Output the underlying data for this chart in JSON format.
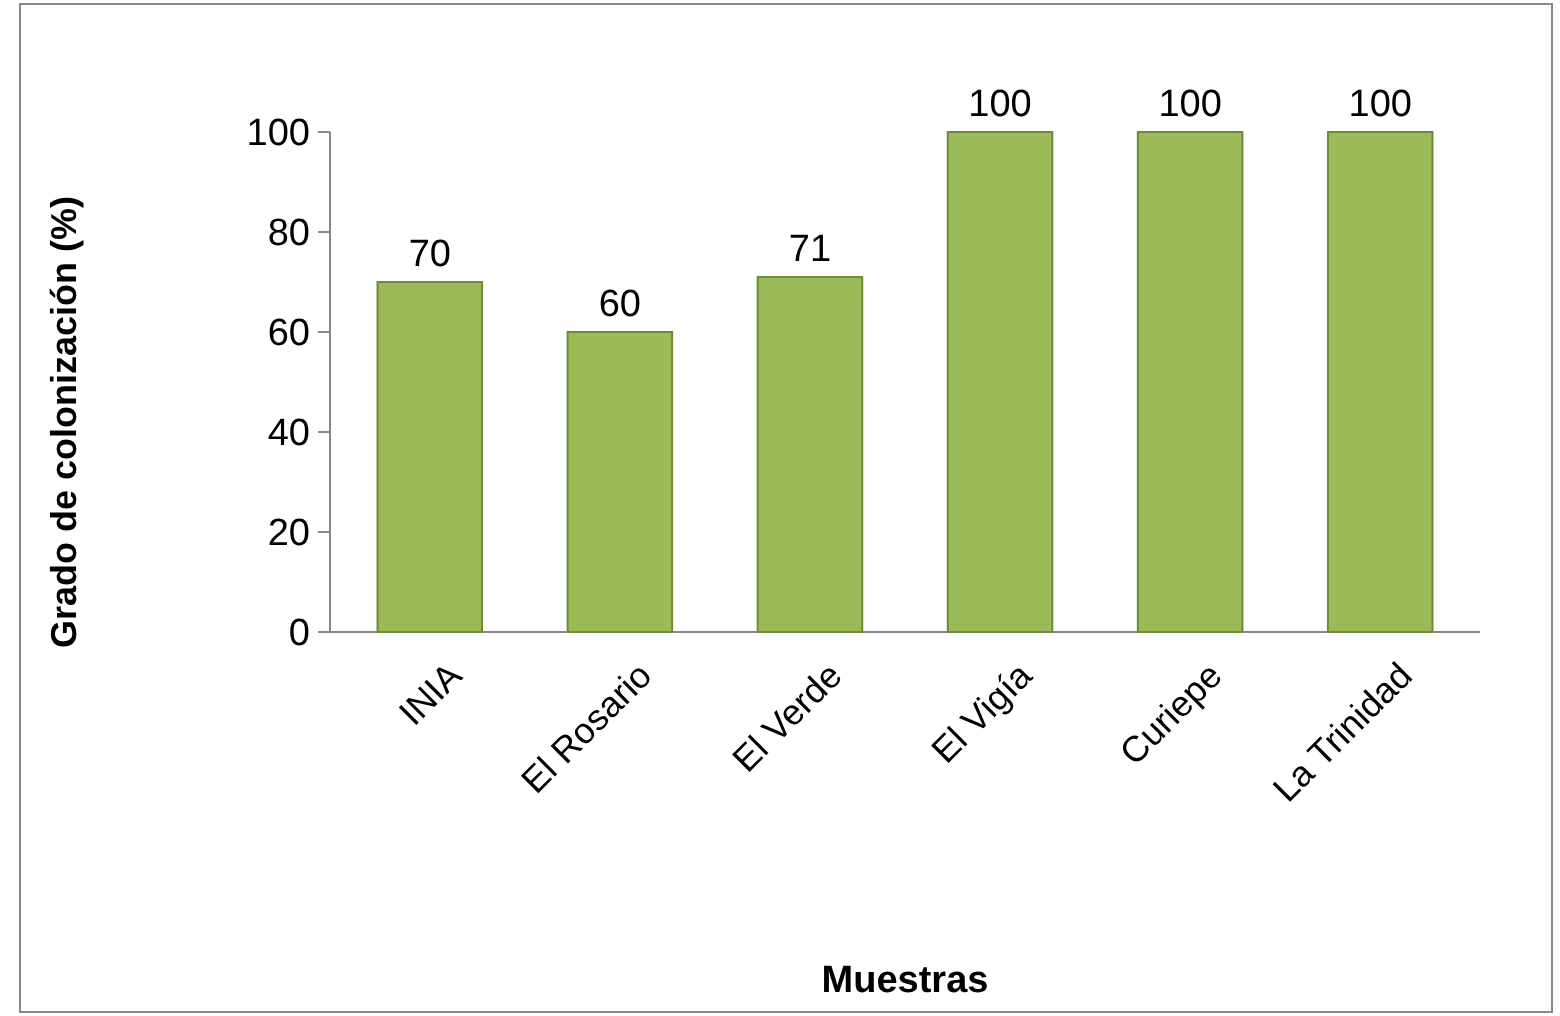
{
  "chart_data": {
    "type": "bar",
    "xlabel": "Muestras",
    "ylabel": "Grado de colonización (%)",
    "categories": [
      "INIA",
      "El Rosario",
      "El Verde",
      "El Vigía",
      "Curiepe",
      "La Trinidad"
    ],
    "values": [
      70,
      60,
      71,
      100,
      100,
      100
    ],
    "color": "#9bbb59",
    "ylim": [
      0,
      100
    ],
    "yticks": [
      0,
      20,
      40,
      60,
      80,
      100
    ],
    "grid": false,
    "data_labels": true
  }
}
